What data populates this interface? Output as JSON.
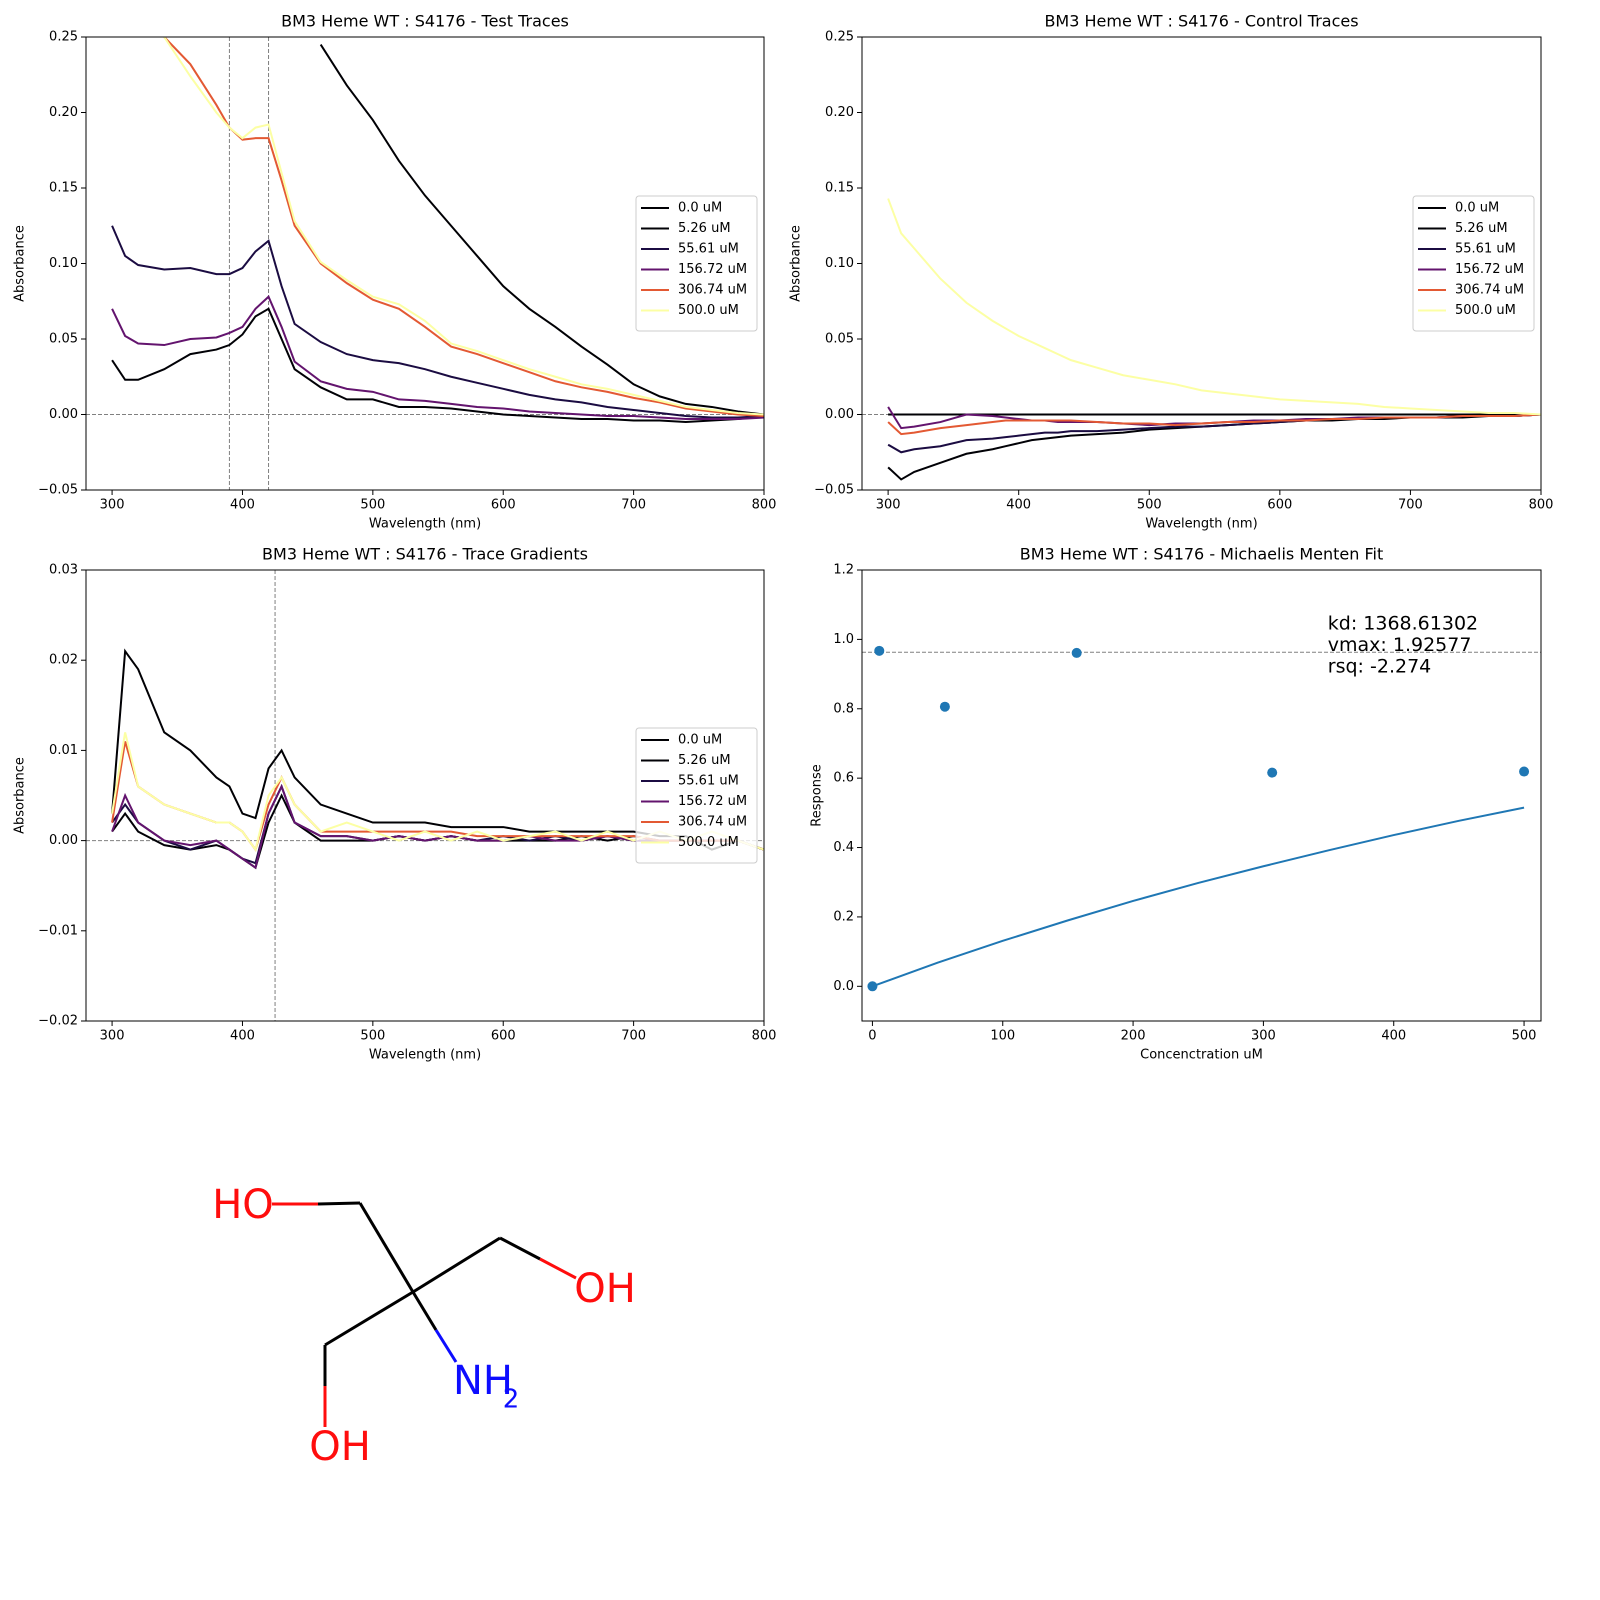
{
  "chart_data": [
    {
      "type": "line",
      "title": "BM3 Heme WT : S4176 - Test Traces",
      "x_label": "Wavelength (nm)",
      "y_label": "Absorbance",
      "x": [
        300,
        310,
        320,
        340,
        360,
        380,
        390,
        400,
        410,
        420,
        430,
        440,
        460,
        480,
        500,
        520,
        540,
        560,
        580,
        600,
        620,
        640,
        660,
        680,
        700,
        720,
        740,
        760,
        780,
        800
      ],
      "series": [
        {
          "name": "0.0 uM",
          "color": "#000004",
          "values": [
            null,
            null,
            null,
            null,
            null,
            null,
            null,
            null,
            null,
            null,
            null,
            null,
            0.245,
            0.218,
            0.195,
            0.168,
            0.145,
            0.125,
            0.105,
            0.085,
            0.07,
            0.058,
            0.045,
            0.033,
            0.02,
            0.012,
            0.007,
            0.005,
            0.002,
            0.0
          ]
        },
        {
          "name": "5.26 uM",
          "color": "#010106",
          "values": [
            0.036,
            0.023,
            0.023,
            0.03,
            0.04,
            0.043,
            0.046,
            0.053,
            0.065,
            0.07,
            0.05,
            0.03,
            0.018,
            0.01,
            0.01,
            0.005,
            0.005,
            0.004,
            0.002,
            0.0,
            -0.001,
            -0.002,
            -0.003,
            -0.003,
            -0.004,
            -0.004,
            -0.005,
            -0.004,
            -0.003,
            -0.001
          ]
        },
        {
          "name": "55.61 uM",
          "color": "#1b0c42",
          "values": [
            0.125,
            0.105,
            0.099,
            0.096,
            0.097,
            0.093,
            0.093,
            0.097,
            0.108,
            0.115,
            0.085,
            0.06,
            0.048,
            0.04,
            0.036,
            0.034,
            0.03,
            0.025,
            0.021,
            0.017,
            0.013,
            0.01,
            0.008,
            0.005,
            0.003,
            0.001,
            -0.001,
            -0.002,
            -0.002,
            -0.001
          ]
        },
        {
          "name": "156.72 uM",
          "color": "#63146e",
          "values": [
            0.07,
            0.052,
            0.047,
            0.046,
            0.05,
            0.051,
            0.054,
            0.058,
            0.07,
            0.078,
            0.058,
            0.035,
            0.022,
            0.017,
            0.015,
            0.01,
            0.009,
            0.007,
            0.005,
            0.004,
            0.002,
            0.001,
            0.0,
            -0.001,
            -0.001,
            -0.002,
            -0.003,
            -0.003,
            -0.003,
            -0.002
          ]
        },
        {
          "name": "306.74 uM",
          "color": "#e35933",
          "values": [
            null,
            null,
            null,
            0.25,
            0.232,
            0.205,
            0.19,
            0.182,
            0.183,
            0.183,
            0.155,
            0.125,
            0.1,
            0.087,
            0.076,
            0.07,
            0.058,
            0.045,
            0.04,
            0.034,
            0.028,
            0.022,
            0.018,
            0.015,
            0.011,
            0.008,
            0.004,
            0.002,
            0.0,
            -0.001
          ]
        },
        {
          "name": "500.0 uM",
          "color": "#fcffa4",
          "values": [
            null,
            null,
            null,
            0.25,
            0.224,
            0.2,
            0.19,
            0.183,
            0.19,
            0.192,
            0.16,
            0.128,
            0.101,
            0.089,
            0.078,
            0.073,
            0.062,
            0.047,
            0.042,
            0.036,
            0.03,
            0.025,
            0.02,
            0.017,
            0.013,
            0.009,
            0.005,
            0.003,
            0.001,
            0.0
          ]
        }
      ],
      "xlim": [
        280,
        800
      ],
      "ylim": [
        -0.05,
        0.25
      ],
      "xticks": [
        300,
        400,
        500,
        600,
        700,
        800
      ],
      "yticks": [
        {
          "value": -0.05,
          "label": "−0.05"
        },
        {
          "value": 0,
          "label": "0.00"
        },
        {
          "value": 0.05,
          "label": "0.05"
        },
        {
          "value": 0.1,
          "label": "0.10"
        },
        {
          "value": 0.15,
          "label": "0.15"
        },
        {
          "value": 0.2,
          "label": "0.20"
        },
        {
          "value": 0.25,
          "label": "0.25"
        }
      ],
      "reference_lines": {
        "x": [
          390,
          420
        ],
        "y": [
          0
        ]
      },
      "legend": "center right"
    },
    {
      "type": "line",
      "title": "BM3 Heme WT : S4176 - Control Traces",
      "x_label": "Wavelength (nm)",
      "y_label": "Absorbance",
      "x": [
        300,
        310,
        320,
        340,
        360,
        380,
        390,
        400,
        410,
        420,
        430,
        440,
        460,
        480,
        500,
        520,
        540,
        560,
        580,
        600,
        620,
        640,
        660,
        680,
        700,
        720,
        740,
        760,
        780,
        800
      ],
      "series": [
        {
          "name": "0.0 uM",
          "color": "#000004",
          "values": [
            0,
            0,
            0,
            0,
            0,
            0,
            0,
            0,
            0,
            0,
            0,
            0,
            0,
            0,
            0,
            0,
            0,
            0,
            0,
            0,
            0,
            0,
            0,
            0,
            0,
            0,
            0,
            0,
            0,
            0
          ]
        },
        {
          "name": "5.26 uM",
          "color": "#010106",
          "values": [
            -0.035,
            -0.043,
            -0.038,
            -0.032,
            -0.026,
            -0.023,
            -0.021,
            -0.019,
            -0.017,
            -0.016,
            -0.015,
            -0.014,
            -0.013,
            -0.012,
            -0.01,
            -0.009,
            -0.008,
            -0.007,
            -0.006,
            -0.005,
            -0.004,
            -0.004,
            -0.003,
            -0.003,
            -0.002,
            -0.002,
            -0.002,
            -0.001,
            -0.001,
            0.0
          ]
        },
        {
          "name": "55.61 uM",
          "color": "#1b0c42",
          "values": [
            -0.02,
            -0.025,
            -0.023,
            -0.021,
            -0.017,
            -0.016,
            -0.015,
            -0.014,
            -0.013,
            -0.012,
            -0.012,
            -0.011,
            -0.011,
            -0.01,
            -0.009,
            -0.008,
            -0.008,
            -0.007,
            -0.006,
            -0.005,
            -0.004,
            -0.003,
            -0.003,
            -0.002,
            -0.002,
            -0.002,
            -0.001,
            -0.001,
            -0.001,
            0.0
          ]
        },
        {
          "name": "156.72 uM",
          "color": "#63146e",
          "values": [
            0.005,
            -0.009,
            -0.008,
            -0.005,
            0.0,
            -0.001,
            -0.002,
            -0.003,
            -0.004,
            -0.004,
            -0.005,
            -0.005,
            -0.005,
            -0.006,
            -0.007,
            -0.006,
            -0.006,
            -0.005,
            -0.004,
            -0.004,
            -0.003,
            -0.003,
            -0.002,
            -0.002,
            -0.002,
            -0.002,
            -0.001,
            -0.001,
            -0.001,
            0.0
          ]
        },
        {
          "name": "306.74 uM",
          "color": "#e35933",
          "values": [
            -0.005,
            -0.013,
            -0.012,
            -0.009,
            -0.007,
            -0.005,
            -0.004,
            -0.004,
            -0.004,
            -0.004,
            -0.004,
            -0.004,
            -0.005,
            -0.006,
            -0.006,
            -0.007,
            -0.006,
            -0.005,
            -0.005,
            -0.004,
            -0.004,
            -0.003,
            -0.003,
            -0.002,
            -0.002,
            -0.002,
            -0.001,
            -0.001,
            -0.001,
            0.0
          ]
        },
        {
          "name": "500.0 uM",
          "color": "#fcffa4",
          "values": [
            0.143,
            0.12,
            0.11,
            0.09,
            0.074,
            0.062,
            0.057,
            0.052,
            0.048,
            0.044,
            0.04,
            0.036,
            0.031,
            0.026,
            0.023,
            0.02,
            0.016,
            0.014,
            0.012,
            0.01,
            0.009,
            0.008,
            0.007,
            0.005,
            0.004,
            0.003,
            0.002,
            0.001,
            0.001,
            0.0
          ]
        }
      ],
      "xlim": [
        280,
        800
      ],
      "ylim": [
        -0.05,
        0.25
      ],
      "xticks": [
        300,
        400,
        500,
        600,
        700,
        800
      ],
      "yticks": [
        {
          "value": -0.05,
          "label": "−0.05"
        },
        {
          "value": 0,
          "label": "0.00"
        },
        {
          "value": 0.05,
          "label": "0.05"
        },
        {
          "value": 0.1,
          "label": "0.10"
        },
        {
          "value": 0.15,
          "label": "0.15"
        },
        {
          "value": 0.2,
          "label": "0.20"
        },
        {
          "value": 0.25,
          "label": "0.25"
        }
      ],
      "reference_lines": {
        "y": [
          0
        ]
      },
      "legend": "center right"
    },
    {
      "type": "line",
      "title": "BM3 Heme WT : S4176 - Trace Gradients",
      "x_label": "Wavelength (nm)",
      "y_label": "Absorbance",
      "x": [
        300,
        310,
        320,
        340,
        360,
        380,
        390,
        400,
        410,
        420,
        430,
        440,
        460,
        480,
        500,
        520,
        540,
        560,
        580,
        600,
        620,
        640,
        660,
        680,
        700,
        720,
        740,
        760,
        780,
        800
      ],
      "series": [
        {
          "name": "0.0 uM",
          "color": "#000004",
          "values": [
            0.003,
            0.021,
            0.019,
            0.012,
            0.01,
            0.007,
            0.006,
            0.003,
            0.0025,
            0.008,
            0.01,
            0.007,
            0.004,
            0.003,
            0.002,
            0.002,
            0.002,
            0.0015,
            0.0015,
            0.0015,
            0.001,
            0.001,
            0.001,
            0.001,
            0.001,
            0.0005,
            0.0005,
            -0.001,
            0.0,
            -0.001
          ]
        },
        {
          "name": "5.26 uM",
          "color": "#010106",
          "values": [
            0.001,
            0.003,
            0.001,
            -0.0005,
            -0.001,
            -0.0005,
            -0.001,
            -0.002,
            -0.003,
            0.002,
            0.005,
            0.002,
            0.0,
            0.0,
            0.0,
            0.0005,
            0.0,
            0.0005,
            0.0,
            0.0,
            0.0,
            0.0,
            0.0005,
            0.0,
            0.0005,
            0.0,
            0.0,
            0.0,
            0.0,
            -0.001
          ]
        },
        {
          "name": "55.61 uM",
          "color": "#1b0c42",
          "values": [
            0.002,
            0.004,
            0.002,
            0.0,
            -0.001,
            0.0,
            -0.001,
            -0.002,
            -0.0025,
            0.003,
            0.006,
            0.002,
            0.0005,
            0.0005,
            0.0,
            0.0005,
            0.0,
            0.0005,
            0.0,
            0.0005,
            0.0,
            0.0005,
            0.0,
            0.0005,
            0.0,
            0.0,
            0.0,
            0.0,
            0.0,
            -0.001
          ]
        },
        {
          "name": "156.72 uM",
          "color": "#63146e",
          "values": [
            0.001,
            0.005,
            0.002,
            0.0,
            -0.0005,
            0.0,
            -0.001,
            -0.002,
            -0.003,
            0.003,
            0.006,
            0.002,
            0.0005,
            0.0005,
            0.0,
            0.0005,
            0.0,
            0.0005,
            0.0,
            0.0,
            0.0005,
            0.0,
            0.0,
            0.0005,
            0.0,
            0.0,
            0.0,
            0.0,
            0.0,
            -0.001
          ]
        },
        {
          "name": "306.74 uM",
          "color": "#e35933",
          "values": [
            0.002,
            0.011,
            0.006,
            0.004,
            0.003,
            0.002,
            0.002,
            0.001,
            -0.001,
            0.004,
            0.007,
            0.004,
            0.001,
            0.001,
            0.001,
            0.001,
            0.001,
            0.001,
            0.0005,
            0.0005,
            0.0005,
            0.0005,
            0.0005,
            0.0005,
            0.0005,
            0.0,
            0.0,
            0.0,
            0.0,
            -0.001
          ]
        },
        {
          "name": "500.0 uM",
          "color": "#fcffa4",
          "values": [
            0.003,
            0.012,
            0.006,
            0.004,
            0.003,
            0.002,
            0.002,
            0.001,
            -0.001,
            0.005,
            0.007,
            0.004,
            0.001,
            0.002,
            0.001,
            0.0,
            0.001,
            0.0,
            0.001,
            0.0,
            0.0005,
            0.001,
            0.0,
            0.001,
            0.0,
            0.001,
            0.0,
            0.001,
            0.0,
            -0.001
          ]
        }
      ],
      "xlim": [
        280,
        800
      ],
      "ylim": [
        -0.02,
        0.03
      ],
      "xticks": [
        300,
        400,
        500,
        600,
        700,
        800
      ],
      "yticks": [
        {
          "value": -0.02,
          "label": "−0.02"
        },
        {
          "value": -0.01,
          "label": "−0.01"
        },
        {
          "value": 0,
          "label": "0.00"
        },
        {
          "value": 0.01,
          "label": "0.01"
        },
        {
          "value": 0.02,
          "label": "0.02"
        },
        {
          "value": 0.03,
          "label": "0.03"
        }
      ],
      "reference_lines": {
        "x": [
          425
        ],
        "y": [
          0
        ]
      },
      "legend": "center right"
    },
    {
      "type": "scatter",
      "title": "BM3 Heme WT : S4176 - Michaelis Menten Fit",
      "x_label": "Concenctration uM",
      "y_label": "Response",
      "x": [
        0,
        5.26,
        55.61,
        156.72,
        306.74,
        500
      ],
      "values": [
        0.0,
        0.967,
        0.806,
        0.961,
        0.616,
        0.619
      ],
      "color": "#1f77b4",
      "fit": {
        "x": [
          0,
          50,
          100,
          150,
          200,
          250,
          300,
          350,
          400,
          450,
          500
        ],
        "values": [
          0.0,
          0.068,
          0.131,
          0.19,
          0.246,
          0.298,
          0.346,
          0.392,
          0.436,
          0.477,
          0.515
        ],
        "color": "#1f77b4"
      },
      "xlim": [
        -8,
        513
      ],
      "ylim": [
        -0.1,
        1.2
      ],
      "xticks": [
        0,
        100,
        200,
        300,
        400,
        500
      ],
      "yticks": [
        {
          "value": 0,
          "label": "0.0"
        },
        {
          "value": 0.2,
          "label": "0.2"
        },
        {
          "value": 0.4,
          "label": "0.4"
        },
        {
          "value": 0.6,
          "label": "0.6"
        },
        {
          "value": 0.8,
          "label": "0.8"
        },
        {
          "value": 1.0,
          "label": "1.0"
        },
        {
          "value": 1.2,
          "label": "1.2"
        }
      ],
      "reference_lines": {
        "y": [
          0.963
        ]
      },
      "annotation": [
        "kd: 1368.61302",
        "vmax: 1.92577",
        "rsq: -2.274"
      ]
    }
  ],
  "molecule": {
    "labels": [
      "HO",
      "OH",
      "OH",
      "NH",
      "2"
    ]
  }
}
